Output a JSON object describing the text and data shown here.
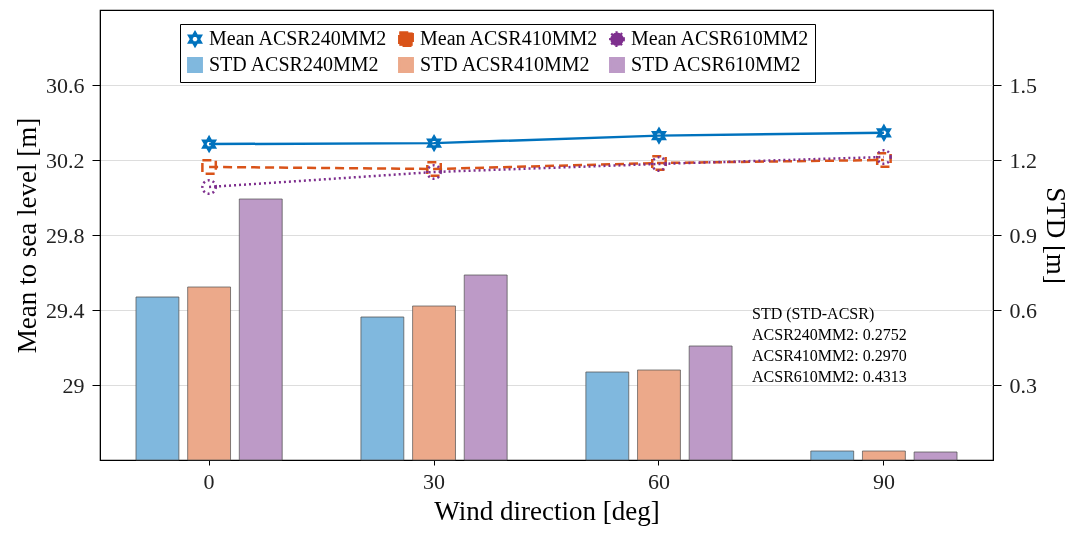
{
  "chart_data": {
    "type": "bar",
    "xlabel": "Wind direction [deg]",
    "ylabel": "Mean to sea level [m]",
    "y2label": "STD [m]",
    "categories": [
      "0",
      "30",
      "60",
      "90"
    ],
    "series": [
      {
        "name": "Mean ACSR240MM2",
        "type": "line",
        "color": "#0072bd",
        "marker": "star",
        "line_style": "solid",
        "values": [
          30.285,
          30.29,
          30.33,
          30.345
        ]
      },
      {
        "name": "Mean ACSR410MM2",
        "type": "line",
        "color": "#d95319",
        "marker": "square",
        "line_style": "dashed",
        "values": [
          30.163,
          30.152,
          30.184,
          30.2
        ]
      },
      {
        "name": "Mean ACSR610MM2",
        "type": "line",
        "color": "#7e2f8e",
        "marker": "circle",
        "line_style": "dotted",
        "values": [
          30.056,
          30.136,
          30.179,
          30.216
        ]
      },
      {
        "name": "STD ACSR240MM2",
        "axis": "y2",
        "color": "#80b8de",
        "values": [
          0.652,
          0.572,
          0.352,
          0.036
        ]
      },
      {
        "name": "STD ACSR410MM2",
        "axis": "y2",
        "color": "#eca98a",
        "values": [
          0.692,
          0.616,
          0.36,
          0.036
        ]
      },
      {
        "name": "STD ACSR610MM2",
        "axis": "y2",
        "color": "#bd9ac7",
        "values": [
          1.044,
          0.74,
          0.456,
          0.032
        ]
      }
    ],
    "ylim": [
      28.6,
      31.0
    ],
    "yticks": [
      29,
      29.4,
      29.8,
      30.2,
      30.6
    ],
    "y2lim": [
      0,
      1.8
    ],
    "y2ticks": [
      0.3,
      0.6,
      0.9,
      1.2,
      1.5
    ],
    "grid": "y",
    "legend": "top",
    "annotations": [
      "STD (STD-ACSR)",
      "ACSR240MM2: 0.2752",
      "ACSR410MM2: 0.2970",
      "ACSR610MM2: 0.4313"
    ]
  }
}
